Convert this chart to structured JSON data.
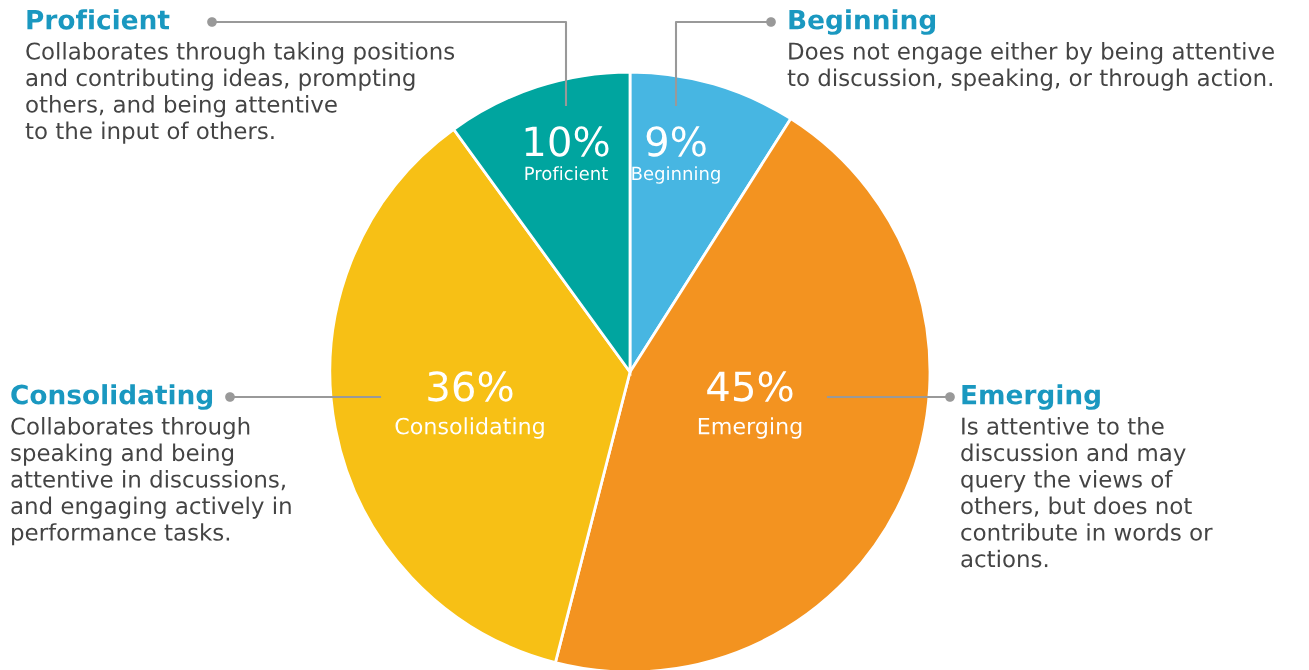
{
  "chart_data": {
    "type": "pie",
    "categories": [
      "Beginning",
      "Emerging",
      "Consolidating",
      "Proficient"
    ],
    "values": [
      9,
      45,
      36,
      10
    ],
    "value_labels": [
      "9%",
      "45%",
      "36%",
      "10%"
    ],
    "colors": [
      "#47b6e2",
      "#f39320",
      "#f7c015",
      "#00a59f"
    ],
    "annotations": [
      "Does not engage either by being attentive\nto discussion, speaking, or through action.",
      "Is attentive to the\ndiscussion and may\nquery the views of\nothers, but does not\ncontribute in words or\nactions.",
      "Collaborates through\nspeaking and being\nattentive in discussions,\nand engaging actively in\nperformance tasks.",
      "Collaborates through taking positions\nand contributing ideas, prompting\nothers, and being attentive\nto the input of others."
    ]
  }
}
